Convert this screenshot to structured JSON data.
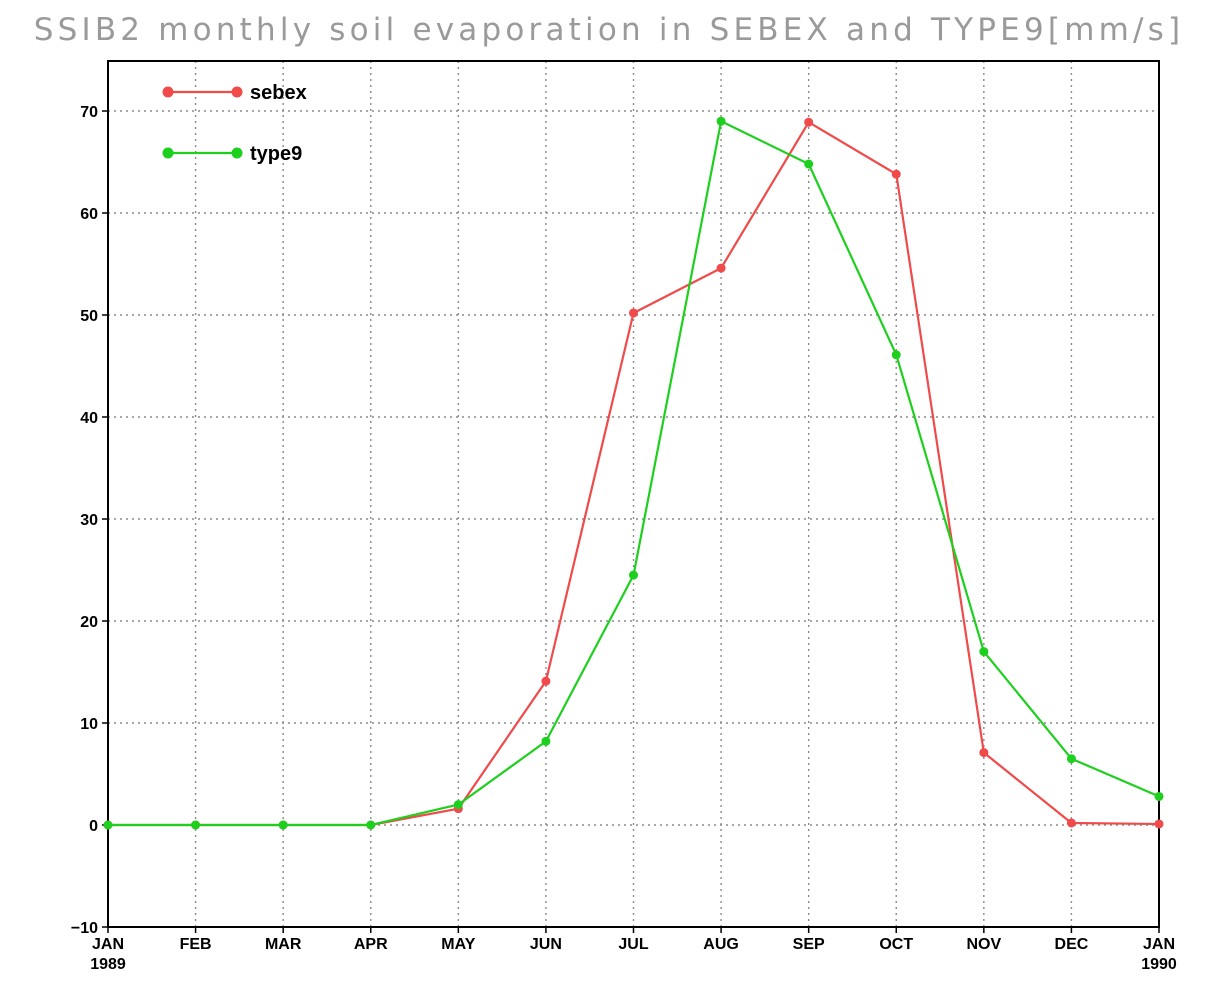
{
  "chart_data": {
    "type": "line",
    "title": "SSIB2 monthly soil evaporation in SEBEX and TYPE9[mm/s]",
    "xlabel": "",
    "ylabel": "",
    "x_ticks": [
      {
        "month": "JAN",
        "year": "1989"
      },
      {
        "month": "FEB",
        "year": ""
      },
      {
        "month": "MAR",
        "year": ""
      },
      {
        "month": "APR",
        "year": ""
      },
      {
        "month": "MAY",
        "year": ""
      },
      {
        "month": "JUN",
        "year": ""
      },
      {
        "month": "JUL",
        "year": ""
      },
      {
        "month": "AUG",
        "year": ""
      },
      {
        "month": "SEP",
        "year": ""
      },
      {
        "month": "OCT",
        "year": ""
      },
      {
        "month": "NOV",
        "year": ""
      },
      {
        "month": "DEC",
        "year": ""
      },
      {
        "month": "JAN",
        "year": "1990"
      }
    ],
    "ylim": [
      -10,
      75
    ],
    "y_ticks": [
      -10,
      0,
      10,
      20,
      30,
      40,
      50,
      60,
      70
    ],
    "grid": true,
    "legend_position": "top-left",
    "series": [
      {
        "name": "sebex",
        "color": "#f04a4a",
        "values": [
          0,
          0,
          0,
          0,
          1.6,
          14.1,
          50.2,
          54.6,
          68.9,
          63.8,
          7.1,
          0.2,
          0.1
        ]
      },
      {
        "name": "type9",
        "color": "#1ed01e",
        "values": [
          0,
          0,
          0,
          0,
          2.0,
          8.2,
          24.5,
          69.0,
          64.8,
          46.1,
          17.0,
          6.5,
          2.8
        ]
      }
    ]
  }
}
